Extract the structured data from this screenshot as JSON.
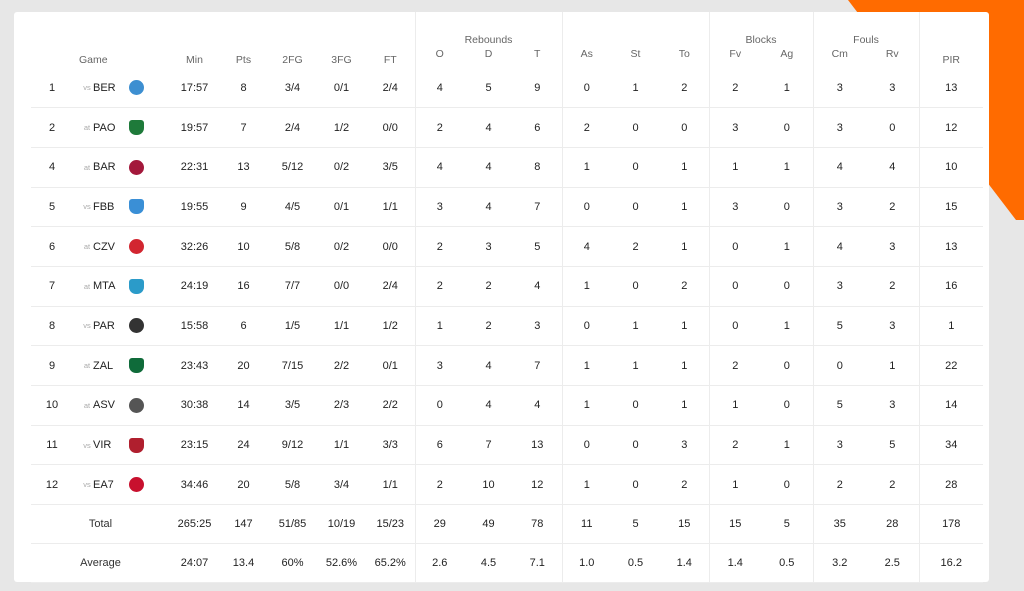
{
  "colors": {
    "accent": "#ff6b00",
    "card": "#ffffff",
    "background": "#e7e7e7"
  },
  "table": {
    "groups": {
      "rebounds": "Rebounds",
      "blocks": "Blocks",
      "fouls": "Fouls"
    },
    "columns": [
      "Game",
      "Min",
      "Pts",
      "2FG",
      "3FG",
      "FT",
      "O",
      "D",
      "T",
      "As",
      "St",
      "To",
      "Fv",
      "Ag",
      "Cm",
      "Rv",
      "PIR"
    ],
    "rows": [
      {
        "n": "1",
        "loc": "vs",
        "opp": "BER",
        "logo": "ber-logo",
        "logo_color": "#3d8fd1",
        "stats": [
          "17:57",
          "8",
          "3/4",
          "0/1",
          "2/4",
          "4",
          "5",
          "9",
          "0",
          "1",
          "2",
          "2",
          "1",
          "3",
          "3",
          "13"
        ]
      },
      {
        "n": "2",
        "loc": "at",
        "opp": "PAO",
        "logo": "pao-logo",
        "logo_color": "#1e7a3a",
        "stats": [
          "19:57",
          "7",
          "2/4",
          "1/2",
          "0/0",
          "2",
          "4",
          "6",
          "2",
          "0",
          "0",
          "3",
          "0",
          "3",
          "0",
          "12"
        ]
      },
      {
        "n": "4",
        "loc": "at",
        "opp": "BAR",
        "logo": "bar-logo",
        "logo_color": "#a3183b",
        "stats": [
          "22:31",
          "13",
          "5/12",
          "0/2",
          "3/5",
          "4",
          "4",
          "8",
          "1",
          "0",
          "1",
          "1",
          "1",
          "4",
          "4",
          "10"
        ]
      },
      {
        "n": "5",
        "loc": "vs",
        "opp": "FBB",
        "logo": "fbb-logo",
        "logo_color": "#3a8fd6",
        "stats": [
          "19:55",
          "9",
          "4/5",
          "0/1",
          "1/1",
          "3",
          "4",
          "7",
          "0",
          "0",
          "1",
          "3",
          "0",
          "3",
          "2",
          "15"
        ]
      },
      {
        "n": "6",
        "loc": "at",
        "opp": "CZV",
        "logo": "czv-logo",
        "logo_color": "#d22630",
        "stats": [
          "32:26",
          "10",
          "5/8",
          "0/2",
          "0/0",
          "2",
          "3",
          "5",
          "4",
          "2",
          "1",
          "0",
          "1",
          "4",
          "3",
          "13"
        ]
      },
      {
        "n": "7",
        "loc": "at",
        "opp": "MTA",
        "logo": "mta-logo",
        "logo_color": "#2b9bc9",
        "stats": [
          "24:19",
          "16",
          "7/7",
          "0/0",
          "2/4",
          "2",
          "2",
          "4",
          "1",
          "0",
          "2",
          "0",
          "0",
          "3",
          "2",
          "16"
        ]
      },
      {
        "n": "8",
        "loc": "vs",
        "opp": "PAR",
        "logo": "par-logo",
        "logo_color": "#333333",
        "stats": [
          "15:58",
          "6",
          "1/5",
          "1/1",
          "1/2",
          "1",
          "2",
          "3",
          "0",
          "1",
          "1",
          "0",
          "1",
          "5",
          "3",
          "1"
        ]
      },
      {
        "n": "9",
        "loc": "at",
        "opp": "ZAL",
        "logo": "zal-logo",
        "logo_color": "#0f6b3a",
        "stats": [
          "23:43",
          "20",
          "7/15",
          "2/2",
          "0/1",
          "3",
          "4",
          "7",
          "1",
          "1",
          "1",
          "2",
          "0",
          "0",
          "1",
          "22"
        ]
      },
      {
        "n": "10",
        "loc": "at",
        "opp": "ASV",
        "logo": "asv-logo",
        "logo_color": "#555555",
        "stats": [
          "30:38",
          "14",
          "3/5",
          "2/3",
          "2/2",
          "0",
          "4",
          "4",
          "1",
          "0",
          "1",
          "1",
          "0",
          "5",
          "3",
          "14"
        ]
      },
      {
        "n": "11",
        "loc": "vs",
        "opp": "VIR",
        "logo": "vir-logo",
        "logo_color": "#b01f2e",
        "stats": [
          "23:15",
          "24",
          "9/12",
          "1/1",
          "3/3",
          "6",
          "7",
          "13",
          "0",
          "0",
          "3",
          "2",
          "1",
          "3",
          "5",
          "34"
        ]
      },
      {
        "n": "12",
        "loc": "vs",
        "opp": "EA7",
        "logo": "ea7-logo",
        "logo_color": "#c8102e",
        "stats": [
          "34:46",
          "20",
          "5/8",
          "3/4",
          "1/1",
          "2",
          "10",
          "12",
          "1",
          "0",
          "2",
          "1",
          "0",
          "2",
          "2",
          "28"
        ]
      }
    ],
    "total": {
      "label": "Total",
      "stats": [
        "265:25",
        "147",
        "51/85",
        "10/19",
        "15/23",
        "29",
        "49",
        "78",
        "11",
        "5",
        "15",
        "15",
        "5",
        "35",
        "28",
        "178"
      ]
    },
    "average": {
      "label": "Average",
      "stats": [
        "24:07",
        "13.4",
        "60%",
        "52.6%",
        "65.2%",
        "2.6",
        "4.5",
        "7.1",
        "1.0",
        "0.5",
        "1.4",
        "1.4",
        "0.5",
        "3.2",
        "2.5",
        "16.2"
      ]
    }
  }
}
